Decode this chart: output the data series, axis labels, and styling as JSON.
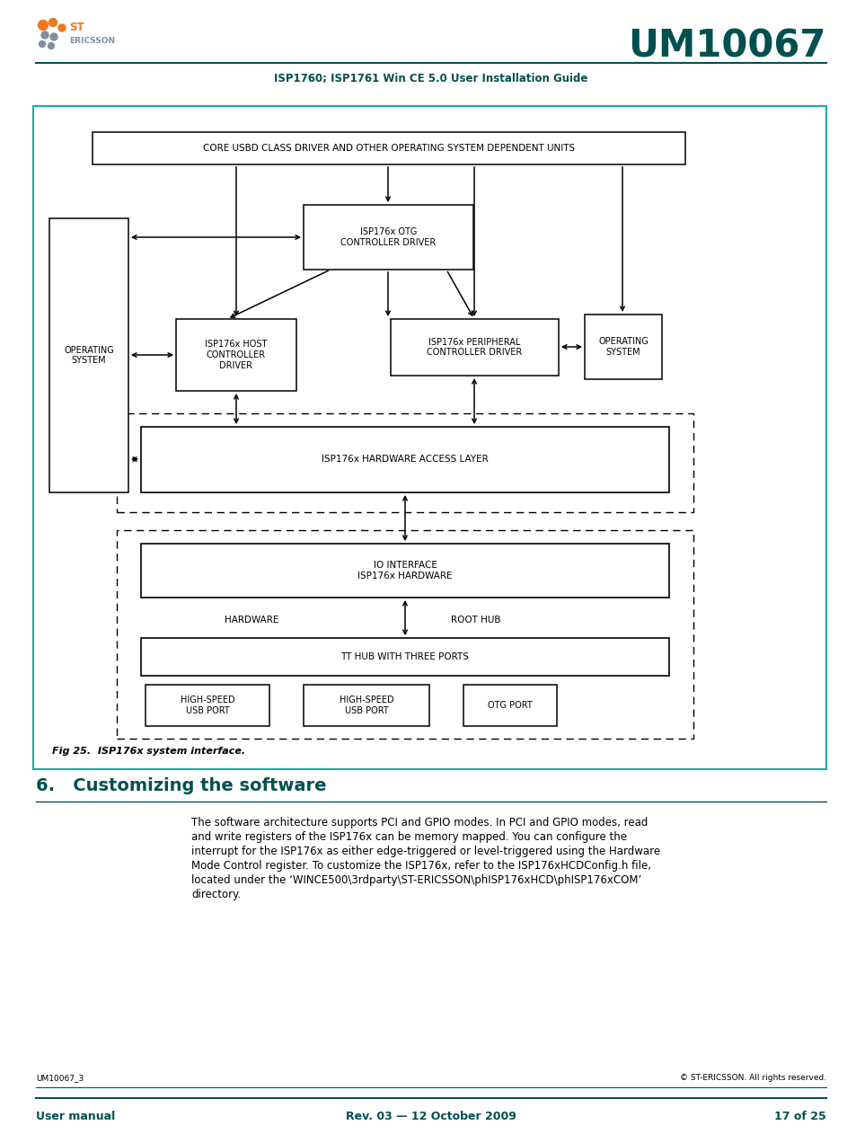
{
  "page_bg": "#ffffff",
  "header_line_color": "#005050",
  "teal_color": "#005050",
  "logo_orange": "#f07820",
  "logo_gray": "#8090a0",
  "title_text": "UM10067",
  "subtitle_text": "ISP1760; ISP1761 Win CE 5.0 User Installation Guide",
  "footer_left1": "UM10067_3",
  "footer_right1": "© ST-ERICSSON. All rights reserved.",
  "footer_left2": "User manual",
  "footer_center2": "Rev. 03 — 12 October 2009",
  "footer_right2": "17 of 25",
  "section_title": "6.   Customizing the software",
  "section_body_lines": [
    "The software architecture supports PCI and GPIO modes. In PCI and GPIO modes, read",
    "and write registers of the ISP176x can be memory mapped. You can configure the",
    "interrupt for the ISP176x as either edge-triggered or level-triggered using the Hardware",
    "Mode Control register. To customize the ISP176x, refer to the ISP176xHCDConfig.h file,",
    "located under the ‘WINCE500\\3rdparty\\ST-ERICSSON\\phISP176xHCD\\phISP176xCOM’",
    "directory."
  ],
  "fig_caption": "Fig 25.  ISP176x system interface.",
  "diagram_border_color": "#20a8a8"
}
